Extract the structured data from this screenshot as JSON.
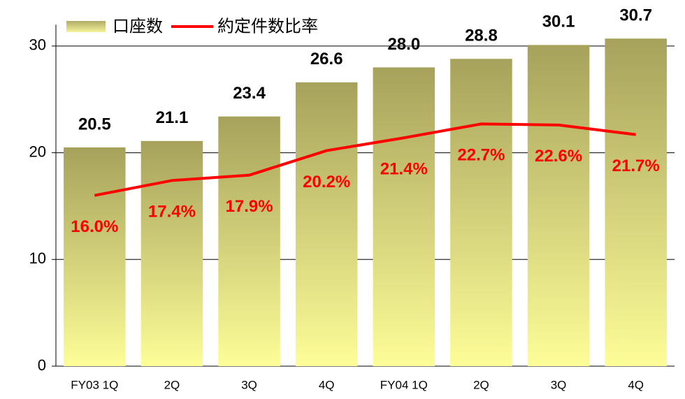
{
  "chart_data": {
    "type": "bar_line",
    "categories": [
      "FY03 1Q",
      "2Q",
      "3Q",
      "4Q",
      "FY04 1Q",
      "2Q",
      "3Q",
      "4Q"
    ],
    "series": [
      {
        "name": "口座数",
        "type": "bar",
        "color": "#a8a45e",
        "values": [
          20.5,
          21.1,
          23.4,
          26.6,
          28.0,
          28.8,
          30.1,
          30.7
        ],
        "value_labels": [
          "20.5",
          "21.1",
          "23.4",
          "26.6",
          "28.0",
          "28.8",
          "30.1",
          "30.7"
        ]
      },
      {
        "name": "約定件数比率",
        "type": "line",
        "color": "#ff0000",
        "values": [
          16.0,
          17.4,
          17.9,
          20.2,
          21.4,
          22.7,
          22.6,
          21.7
        ],
        "value_labels": [
          "16.0%",
          "17.4%",
          "17.9%",
          "20.2%",
          "21.4%",
          "22.7%",
          "22.6%",
          "21.7%"
        ]
      }
    ],
    "ylim": [
      0,
      32
    ],
    "yticks": [
      0,
      10,
      20,
      30
    ],
    "grid": true,
    "legend": "top-left"
  }
}
